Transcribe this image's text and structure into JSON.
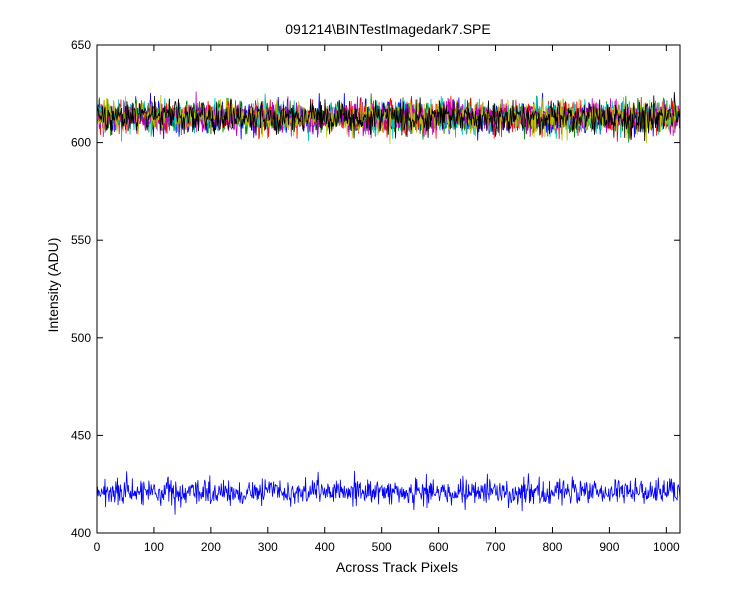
{
  "figure": {
    "background": "#ffffff"
  },
  "chart_data": {
    "type": "line",
    "title": "091214\\BINTestImagedark7.SPE",
    "xlabel": "Across Track Pixels",
    "ylabel": "Intensity (ADU)",
    "xlim": [
      0,
      1024
    ],
    "ylim": [
      400,
      650
    ],
    "xticks": [
      0,
      100,
      200,
      300,
      400,
      500,
      600,
      700,
      800,
      900,
      1000
    ],
    "yticks": [
      400,
      450,
      500,
      550,
      600,
      650
    ],
    "grid": false,
    "legend": "none",
    "noise_seed": 7,
    "series": [
      {
        "color": "#0000ff",
        "mean": 613,
        "noise": 4,
        "n_points": 1024
      },
      {
        "color": "#008000",
        "mean": 613,
        "noise": 4,
        "n_points": 1024
      },
      {
        "color": "#ff0000",
        "mean": 613,
        "noise": 4,
        "n_points": 1024
      },
      {
        "color": "#00bfbf",
        "mean": 613,
        "noise": 4,
        "n_points": 1024
      },
      {
        "color": "#bf00bf",
        "mean": 613,
        "noise": 4,
        "n_points": 1024
      },
      {
        "color": "#bfbf00",
        "mean": 613,
        "noise": 4,
        "n_points": 1024
      },
      {
        "color": "#000000",
        "mean": 613,
        "noise": 4,
        "n_points": 1024
      },
      {
        "color": "#0000ff",
        "mean": 421,
        "noise": 3.5,
        "n_points": 1024
      }
    ]
  }
}
